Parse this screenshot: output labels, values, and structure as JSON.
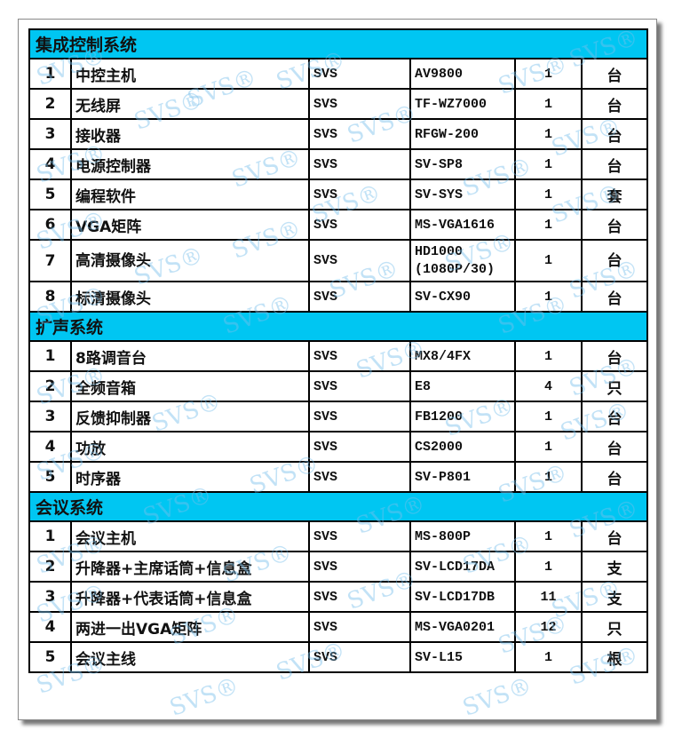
{
  "watermark": "SVS®",
  "sections": [
    {
      "title": "集成控制系统",
      "rows": [
        {
          "no": "1",
          "name": "中控主机",
          "brand": "SVS",
          "model": "AV9800",
          "qty": "1",
          "unit": "台"
        },
        {
          "no": "2",
          "name": "无线屏",
          "brand": "SVS",
          "model": "TF-WZ7000",
          "qty": "1",
          "unit": "台"
        },
        {
          "no": "3",
          "name": "接收器",
          "brand": "SVS",
          "model": "RFGW-200",
          "qty": "1",
          "unit": "台"
        },
        {
          "no": "4",
          "name": "电源控制器",
          "brand": "SVS",
          "model": "SV-SP8",
          "qty": "1",
          "unit": "台"
        },
        {
          "no": "5",
          "name": "编程软件",
          "brand": "SVS",
          "model": "SV-SYS",
          "qty": "1",
          "unit": "套"
        },
        {
          "no": "6",
          "name": "VGA矩阵",
          "brand": "SVS",
          "model": "MS-VGA1616",
          "qty": "1",
          "unit": "台"
        },
        {
          "no": "7",
          "name": "高清摄像头",
          "brand": "SVS",
          "model": "HD1000",
          "model2": "(1080P/30)",
          "qty": "1",
          "unit": "台"
        },
        {
          "no": "8",
          "name": "标清摄像头",
          "brand": "SVS",
          "model": "SV-CX90",
          "qty": "1",
          "unit": "台"
        }
      ]
    },
    {
      "title": "扩声系统",
      "rows": [
        {
          "no": "1",
          "name": "8路调音台",
          "brand": "SVS",
          "model": "MX8/4FX",
          "qty": "1",
          "unit": "台"
        },
        {
          "no": "2",
          "name": "全频音箱",
          "brand": "SVS",
          "model": "E8",
          "qty": "4",
          "unit": "只"
        },
        {
          "no": "3",
          "name": "反馈抑制器",
          "brand": "SVS",
          "model": "FB1200",
          "qty": "1",
          "unit": "台"
        },
        {
          "no": "4",
          "name": "功放",
          "brand": "SVS",
          "model": "CS2000",
          "qty": "1",
          "unit": "台"
        },
        {
          "no": "5",
          "name": "时序器",
          "brand": "SVS",
          "model": "SV-P801",
          "qty": "1",
          "unit": "台"
        }
      ]
    },
    {
      "title": "会议系统",
      "rows": [
        {
          "no": "1",
          "name": "会议主机",
          "brand": "SVS",
          "model": "MS-800P",
          "qty": "1",
          "unit": "台"
        },
        {
          "no": "2",
          "name": "升降器+主席话筒+信息盒",
          "brand": "SVS",
          "model": "SV-LCD17DA",
          "qty": "1",
          "unit": "支"
        },
        {
          "no": "3",
          "name": "升降器+代表话筒+信息盒",
          "brand": "SVS",
          "model": "SV-LCD17DB",
          "qty": "11",
          "unit": "支"
        },
        {
          "no": "4",
          "name": "两进一出VGA矩阵",
          "brand": "SVS",
          "model": "MS-VGA0201",
          "qty": "12",
          "unit": "只"
        },
        {
          "no": "5",
          "name": "会议主线",
          "brand": "SVS",
          "model": "SV-L15",
          "qty": "1",
          "unit": "根"
        }
      ]
    }
  ]
}
